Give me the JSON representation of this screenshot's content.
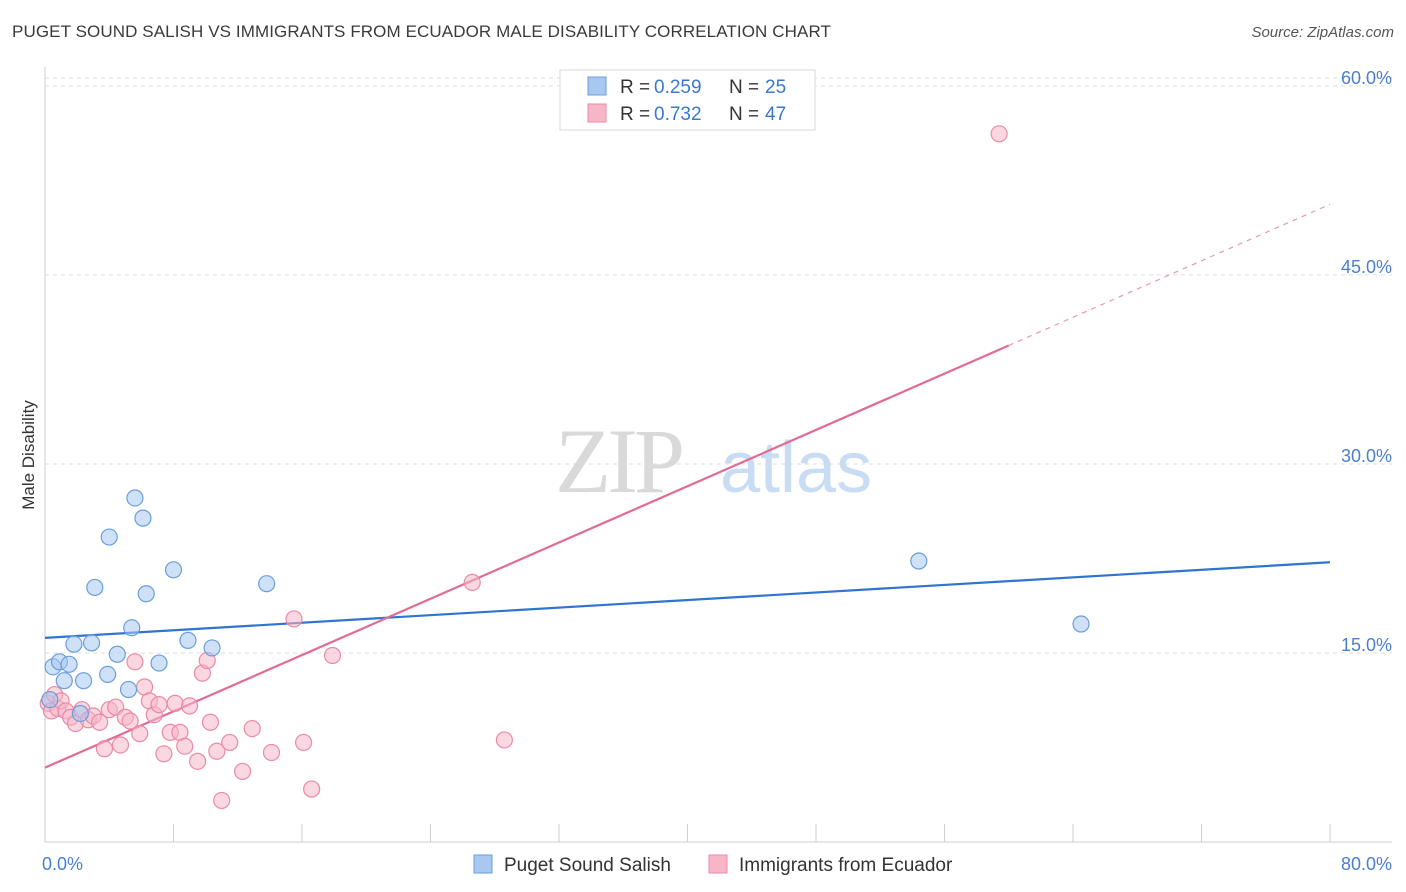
{
  "chart_data": {
    "type": "scatter",
    "title": "PUGET SOUND SALISH VS IMMIGRANTS FROM ECUADOR MALE DISABILITY CORRELATION CHART",
    "source": "Source: ZipAtlas.com",
    "xlabel": "",
    "ylabel": "Male Disability",
    "xlim": [
      0,
      80
    ],
    "ylim": [
      0,
      61.5
    ],
    "x_tick_labels": [
      "0.0%",
      "80.0%"
    ],
    "y_ticks": [
      15,
      30,
      45,
      60
    ],
    "y_tick_labels": [
      "15.0%",
      "30.0%",
      "45.0%",
      "60.0%"
    ],
    "grid": true,
    "legend_top": [
      {
        "r_label": "R =",
        "r_value": "0.259",
        "n_label": "N =",
        "n_value": "25",
        "color": "#a8c8f0"
      },
      {
        "r_label": "R =",
        "r_value": "0.732",
        "n_label": "N =",
        "n_value": "47",
        "color": "#f7b6c8"
      }
    ],
    "legend_bottom": [
      "Puget Sound Salish",
      "Immigrants from Ecuador"
    ],
    "watermark": "ZIPatlas",
    "series": [
      {
        "name": "Puget Sound Salish",
        "color": "#a8c8f0",
        "stroke": "#6a9edc",
        "trend_color": "#2f74d0",
        "trend": {
          "x0": 0,
          "y0": 16.2,
          "x1": 80,
          "y1": 22.2
        },
        "points": [
          [
            0.3,
            11.3
          ],
          [
            0.5,
            13.9
          ],
          [
            0.9,
            14.3
          ],
          [
            1.2,
            12.8
          ],
          [
            1.5,
            14.1
          ],
          [
            1.8,
            15.7
          ],
          [
            2.2,
            10.2
          ],
          [
            2.4,
            12.8
          ],
          [
            2.9,
            15.8
          ],
          [
            3.1,
            20.2
          ],
          [
            3.9,
            13.3
          ],
          [
            4.0,
            24.2
          ],
          [
            4.5,
            14.9
          ],
          [
            5.2,
            12.1
          ],
          [
            5.4,
            17.0
          ],
          [
            5.6,
            27.3
          ],
          [
            6.1,
            25.7
          ],
          [
            6.3,
            19.7
          ],
          [
            7.1,
            14.2
          ],
          [
            8.0,
            21.6
          ],
          [
            8.9,
            16.0
          ],
          [
            10.4,
            15.4
          ],
          [
            13.8,
            20.5
          ],
          [
            54.4,
            22.3
          ],
          [
            64.5,
            17.3
          ]
        ]
      },
      {
        "name": "Immigrants from Ecuador",
        "color": "#f7b6c8",
        "stroke": "#e98aa6",
        "trend_color": "#e36a93",
        "trend": {
          "x0": 0,
          "y0": 5.9,
          "x1": 60,
          "y1": 39.4
        },
        "trend_dashed": {
          "x0": 60,
          "y0": 39.4,
          "x1": 80,
          "y1": 50.6
        },
        "points": [
          [
            0.2,
            11.0
          ],
          [
            0.4,
            10.4
          ],
          [
            0.6,
            11.7
          ],
          [
            0.8,
            10.6
          ],
          [
            1.0,
            11.2
          ],
          [
            1.3,
            10.4
          ],
          [
            1.6,
            9.9
          ],
          [
            1.9,
            9.4
          ],
          [
            2.3,
            10.5
          ],
          [
            2.7,
            9.7
          ],
          [
            3.0,
            10.0
          ],
          [
            3.4,
            9.5
          ],
          [
            3.7,
            7.4
          ],
          [
            4.0,
            10.5
          ],
          [
            4.4,
            10.7
          ],
          [
            4.7,
            7.7
          ],
          [
            5.0,
            9.9
          ],
          [
            5.3,
            9.6
          ],
          [
            5.6,
            14.3
          ],
          [
            5.9,
            8.6
          ],
          [
            6.2,
            12.3
          ],
          [
            6.5,
            11.2
          ],
          [
            6.8,
            10.1
          ],
          [
            7.1,
            10.9
          ],
          [
            7.4,
            7.0
          ],
          [
            7.8,
            8.7
          ],
          [
            8.1,
            11.0
          ],
          [
            8.4,
            8.7
          ],
          [
            8.7,
            7.6
          ],
          [
            9.0,
            10.8
          ],
          [
            9.5,
            6.4
          ],
          [
            9.8,
            13.4
          ],
          [
            10.1,
            14.4
          ],
          [
            10.3,
            9.5
          ],
          [
            10.7,
            7.2
          ],
          [
            11.0,
            3.3
          ],
          [
            11.5,
            7.9
          ],
          [
            12.3,
            5.6
          ],
          [
            12.9,
            9.0
          ],
          [
            14.1,
            7.1
          ],
          [
            15.5,
            17.7
          ],
          [
            16.1,
            7.9
          ],
          [
            16.6,
            4.2
          ],
          [
            17.9,
            14.8
          ],
          [
            26.6,
            20.6
          ],
          [
            28.6,
            8.1
          ],
          [
            59.4,
            56.2
          ]
        ]
      }
    ]
  }
}
